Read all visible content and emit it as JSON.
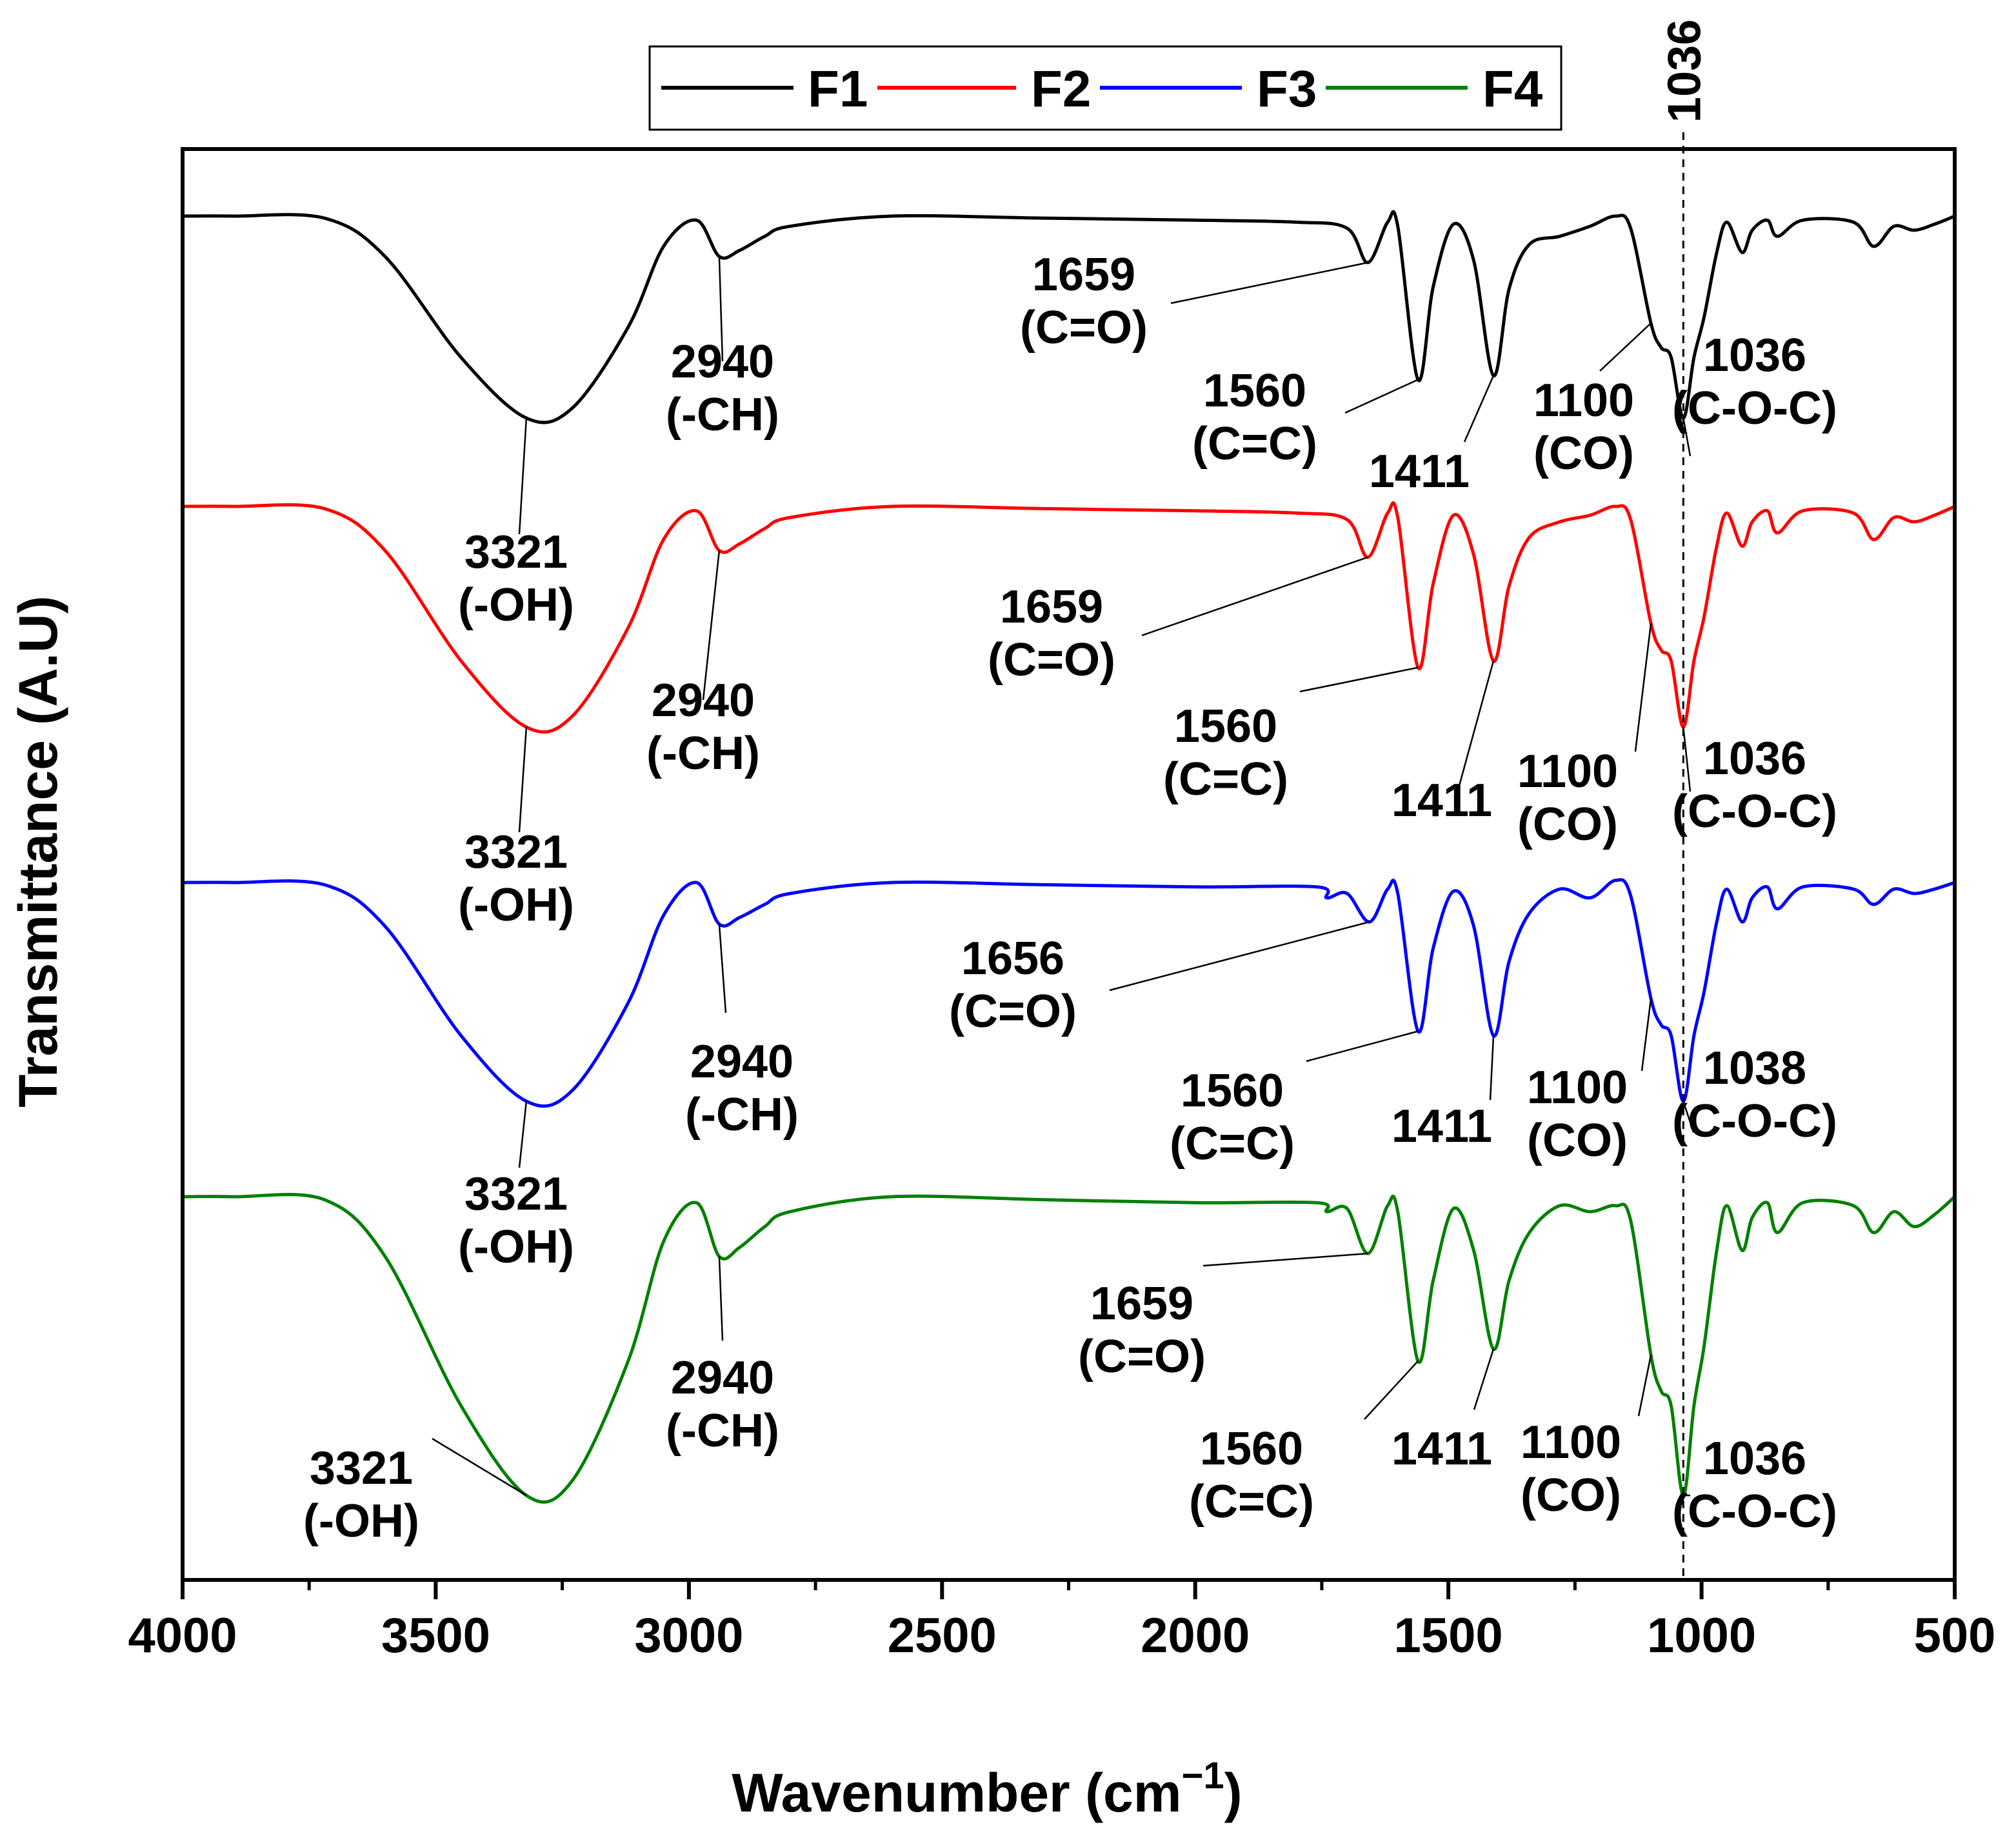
{
  "chart_data": {
    "type": "line",
    "title": "",
    "xlabel": "Wavenumber (cm",
    "xlabel_superscript": "−1",
    "xlabel_close": ")",
    "ylabel": "Transmittance (A.U)",
    "xlim": [
      4000,
      500
    ],
    "x_reversed": true,
    "y_tick_labels_shown": false,
    "x_ticks": [
      4000,
      3500,
      3000,
      2500,
      2000,
      1500,
      1000,
      500
    ],
    "x_tick_labels": [
      "4000",
      "3500",
      "3000",
      "2500",
      "2000",
      "1500",
      "1000",
      "500"
    ],
    "legend": {
      "placement": "top-center",
      "entries": [
        "F1",
        "F2",
        "F3",
        "F4"
      ]
    },
    "reference_line": {
      "x": 1036,
      "label": "1036",
      "style": "dashed"
    },
    "y_description": "relative transmittance, 0 = deepest band, 1 = baseline; series offset vertically",
    "series": [
      {
        "name": "F1",
        "color": "#000000",
        "points": [
          [
            4000,
            1.0
          ],
          [
            3900,
            1.0
          ],
          [
            3720,
            0.99
          ],
          [
            3600,
            0.8
          ],
          [
            3450,
            0.3
          ],
          [
            3321,
            0.0
          ],
          [
            3230,
            0.05
          ],
          [
            3120,
            0.45
          ],
          [
            3050,
            0.85
          ],
          [
            2985,
            0.98
          ],
          [
            2940,
            0.8
          ],
          [
            2900,
            0.83
          ],
          [
            2850,
            0.9
          ],
          [
            2800,
            0.95
          ],
          [
            2600,
            1.0
          ],
          [
            2300,
            0.99
          ],
          [
            2000,
            0.98
          ],
          [
            1800,
            0.97
          ],
          [
            1700,
            0.94
          ],
          [
            1659,
            0.77
          ],
          [
            1620,
            0.97
          ],
          [
            1600,
            0.95
          ],
          [
            1560,
            0.19
          ],
          [
            1530,
            0.65
          ],
          [
            1490,
            0.96
          ],
          [
            1450,
            0.78
          ],
          [
            1411,
            0.21
          ],
          [
            1380,
            0.64
          ],
          [
            1340,
            0.86
          ],
          [
            1280,
            0.9
          ],
          [
            1220,
            0.95
          ],
          [
            1170,
            1.0
          ],
          [
            1140,
            0.94
          ],
          [
            1100,
            0.47
          ],
          [
            1080,
            0.35
          ],
          [
            1060,
            0.3
          ],
          [
            1036,
            0.0
          ],
          [
            1015,
            0.3
          ],
          [
            995,
            0.5
          ],
          [
            970,
            0.82
          ],
          [
            950,
            0.97
          ],
          [
            920,
            0.82
          ],
          [
            900,
            0.93
          ],
          [
            870,
            0.98
          ],
          [
            850,
            0.9
          ],
          [
            800,
            0.98
          ],
          [
            700,
            0.97
          ],
          [
            660,
            0.85
          ],
          [
            620,
            0.95
          ],
          [
            580,
            0.93
          ],
          [
            540,
            0.96
          ],
          [
            500,
            1.0
          ]
        ],
        "annotations": [
          {
            "line1": "3321",
            "line2": "(-OH)"
          },
          {
            "line1": "2940",
            "line2": "(-CH)"
          },
          {
            "line1": "1659",
            "line2": "(C=O)"
          },
          {
            "line1": "1560",
            "line2": "(C=C)"
          },
          {
            "line1": "1411",
            "line2": ""
          },
          {
            "line1": "1100",
            "line2": "(CO)"
          },
          {
            "line1": "1036",
            "line2": "(C-O-C)"
          }
        ]
      },
      {
        "name": "F2",
        "color": "#ff0000",
        "points": [
          [
            4000,
            1.0
          ],
          [
            3900,
            1.0
          ],
          [
            3720,
            0.99
          ],
          [
            3600,
            0.8
          ],
          [
            3450,
            0.3
          ],
          [
            3321,
            0.0
          ],
          [
            3230,
            0.05
          ],
          [
            3120,
            0.45
          ],
          [
            3050,
            0.85
          ],
          [
            2985,
            0.98
          ],
          [
            2940,
            0.8
          ],
          [
            2900,
            0.83
          ],
          [
            2850,
            0.9
          ],
          [
            2800,
            0.95
          ],
          [
            2600,
            1.0
          ],
          [
            2300,
            0.99
          ],
          [
            2000,
            0.98
          ],
          [
            1800,
            0.97
          ],
          [
            1700,
            0.94
          ],
          [
            1659,
            0.77
          ],
          [
            1620,
            0.97
          ],
          [
            1600,
            0.95
          ],
          [
            1560,
            0.27
          ],
          [
            1530,
            0.65
          ],
          [
            1490,
            0.96
          ],
          [
            1450,
            0.78
          ],
          [
            1411,
            0.3
          ],
          [
            1380,
            0.64
          ],
          [
            1340,
            0.86
          ],
          [
            1280,
            0.93
          ],
          [
            1220,
            0.96
          ],
          [
            1170,
            1.0
          ],
          [
            1140,
            0.94
          ],
          [
            1100,
            0.47
          ],
          [
            1080,
            0.35
          ],
          [
            1060,
            0.3
          ],
          [
            1036,
            0.0
          ],
          [
            1015,
            0.3
          ],
          [
            995,
            0.5
          ],
          [
            970,
            0.82
          ],
          [
            950,
            0.97
          ],
          [
            920,
            0.82
          ],
          [
            900,
            0.93
          ],
          [
            870,
            0.98
          ],
          [
            850,
            0.88
          ],
          [
            800,
            0.98
          ],
          [
            700,
            0.97
          ],
          [
            660,
            0.85
          ],
          [
            620,
            0.95
          ],
          [
            580,
            0.93
          ],
          [
            540,
            0.96
          ],
          [
            500,
            1.0
          ]
        ],
        "annotations": [
          {
            "line1": "3321",
            "line2": "(-OH)"
          },
          {
            "line1": "2940",
            "line2": "(-CH)"
          },
          {
            "line1": "1659",
            "line2": "(C=O)"
          },
          {
            "line1": "1560",
            "line2": "(C=C)"
          },
          {
            "line1": "1411",
            "line2": ""
          },
          {
            "line1": "1100",
            "line2": "(CO)"
          },
          {
            "line1": "1036",
            "line2": "(C-O-C)"
          }
        ]
      },
      {
        "name": "F3",
        "color": "#0000ff",
        "points": [
          [
            4000,
            1.0
          ],
          [
            3900,
            1.0
          ],
          [
            3720,
            0.99
          ],
          [
            3600,
            0.8
          ],
          [
            3450,
            0.3
          ],
          [
            3321,
            0.0
          ],
          [
            3230,
            0.05
          ],
          [
            3120,
            0.45
          ],
          [
            3050,
            0.85
          ],
          [
            2985,
            1.0
          ],
          [
            2940,
            0.81
          ],
          [
            2900,
            0.84
          ],
          [
            2850,
            0.9
          ],
          [
            2800,
            0.95
          ],
          [
            2600,
            1.0
          ],
          [
            2300,
            0.99
          ],
          [
            2000,
            0.98
          ],
          [
            1760,
            0.98
          ],
          [
            1740,
            0.93
          ],
          [
            1700,
            0.95
          ],
          [
            1656,
            0.82
          ],
          [
            1620,
            0.97
          ],
          [
            1600,
            0.95
          ],
          [
            1560,
            0.32
          ],
          [
            1530,
            0.7
          ],
          [
            1490,
            0.96
          ],
          [
            1450,
            0.8
          ],
          [
            1411,
            0.3
          ],
          [
            1380,
            0.64
          ],
          [
            1340,
            0.86
          ],
          [
            1280,
            0.97
          ],
          [
            1220,
            0.93
          ],
          [
            1170,
            1.01
          ],
          [
            1140,
            0.94
          ],
          [
            1100,
            0.47
          ],
          [
            1080,
            0.35
          ],
          [
            1060,
            0.3
          ],
          [
            1036,
            0.0
          ],
          [
            1015,
            0.3
          ],
          [
            995,
            0.5
          ],
          [
            970,
            0.82
          ],
          [
            950,
            0.97
          ],
          [
            920,
            0.82
          ],
          [
            900,
            0.93
          ],
          [
            870,
            0.98
          ],
          [
            850,
            0.88
          ],
          [
            800,
            0.98
          ],
          [
            700,
            0.97
          ],
          [
            660,
            0.9
          ],
          [
            620,
            0.97
          ],
          [
            580,
            0.95
          ],
          [
            540,
            0.97
          ],
          [
            500,
            1.0
          ]
        ],
        "annotations": [
          {
            "line1": "3321",
            "line2": "(-OH)"
          },
          {
            "line1": "2940",
            "line2": "(-CH)"
          },
          {
            "line1": "1656",
            "line2": "(C=O)"
          },
          {
            "line1": "1560",
            "line2": "(C=C)"
          },
          {
            "line1": "1411",
            "line2": ""
          },
          {
            "line1": "1100",
            "line2": "(CO)"
          },
          {
            "line1": "1038",
            "line2": "(C-O-C)"
          }
        ]
      },
      {
        "name": "F4",
        "color": "#008000",
        "points": [
          [
            4000,
            1.0
          ],
          [
            3900,
            1.0
          ],
          [
            3720,
            0.99
          ],
          [
            3600,
            0.8
          ],
          [
            3450,
            0.3
          ],
          [
            3321,
            0.0
          ],
          [
            3230,
            0.05
          ],
          [
            3120,
            0.45
          ],
          [
            3050,
            0.85
          ],
          [
            2985,
            0.98
          ],
          [
            2940,
            0.8
          ],
          [
            2900,
            0.83
          ],
          [
            2850,
            0.9
          ],
          [
            2800,
            0.95
          ],
          [
            2600,
            1.0
          ],
          [
            2300,
            0.99
          ],
          [
            2000,
            0.98
          ],
          [
            1760,
            0.98
          ],
          [
            1740,
            0.95
          ],
          [
            1700,
            0.96
          ],
          [
            1659,
            0.81
          ],
          [
            1620,
            0.97
          ],
          [
            1600,
            0.95
          ],
          [
            1560,
            0.45
          ],
          [
            1530,
            0.72
          ],
          [
            1490,
            0.96
          ],
          [
            1450,
            0.82
          ],
          [
            1411,
            0.49
          ],
          [
            1380,
            0.72
          ],
          [
            1340,
            0.88
          ],
          [
            1280,
            0.97
          ],
          [
            1220,
            0.95
          ],
          [
            1170,
            0.97
          ],
          [
            1140,
            0.92
          ],
          [
            1100,
            0.47
          ],
          [
            1080,
            0.35
          ],
          [
            1060,
            0.3
          ],
          [
            1036,
            0.0
          ],
          [
            1015,
            0.3
          ],
          [
            995,
            0.5
          ],
          [
            970,
            0.82
          ],
          [
            950,
            0.97
          ],
          [
            920,
            0.82
          ],
          [
            900,
            0.93
          ],
          [
            870,
            0.98
          ],
          [
            850,
            0.88
          ],
          [
            800,
            0.98
          ],
          [
            700,
            0.97
          ],
          [
            660,
            0.88
          ],
          [
            620,
            0.95
          ],
          [
            580,
            0.9
          ],
          [
            540,
            0.94
          ],
          [
            500,
            1.0
          ]
        ],
        "annotations": [
          {
            "line1": "3321",
            "line2": "(-OH)"
          },
          {
            "line1": "2940",
            "line2": "(-CH)"
          },
          {
            "line1": "1659",
            "line2": "(C=O)"
          },
          {
            "line1": "1560",
            "line2": "(C=C)"
          },
          {
            "line1": "1411",
            "line2": ""
          },
          {
            "line1": "1100",
            "line2": "(CO)"
          },
          {
            "line1": "1036",
            "line2": "(C-O-C)"
          }
        ]
      }
    ]
  }
}
